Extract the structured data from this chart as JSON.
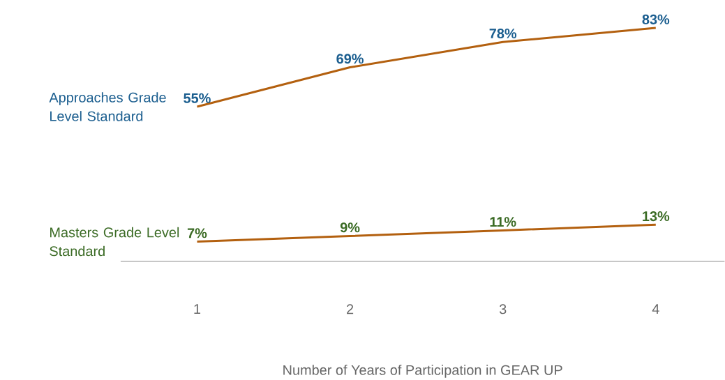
{
  "chart_data": {
    "type": "line",
    "xlabel": "Number of Years of Participation in GEAR UP",
    "categories": [
      "1",
      "2",
      "3",
      "4"
    ],
    "tick_labels": "x",
    "series": [
      {
        "name": "Approaches Grade Level Standard",
        "color": "#b3600f",
        "values": [
          55,
          69,
          78,
          83
        ],
        "value_labels": [
          "55%",
          "69%",
          "78%",
          "83%"
        ]
      },
      {
        "name": "Masters Grade Level Standard",
        "color": "#b3600f",
        "values": [
          7,
          9,
          11,
          13
        ],
        "value_labels": [
          "7%",
          "9%",
          "11%",
          "13%"
        ]
      }
    ]
  }
}
